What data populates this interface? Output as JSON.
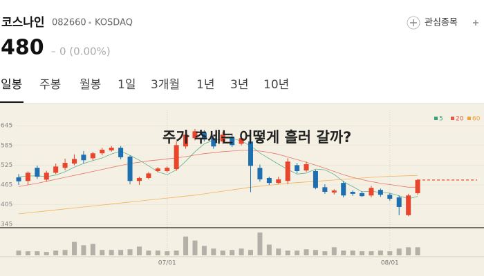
{
  "header": {
    "name": "코스나인",
    "code": "082660",
    "market": "KOSDAQ",
    "watchlist": "관심종목",
    "price": 480,
    "change_mark": "–",
    "change": "0 (0.00%)"
  },
  "tabs": [
    "일봉",
    "주봉",
    "월봉",
    "1일",
    "3개월",
    "1년",
    "3년",
    "10년"
  ],
  "chart_data": {
    "type": "candlestick",
    "title": "주가 추세는 어떻게 흘러 갈까?",
    "categories": [
      null,
      null,
      null,
      null,
      null,
      null,
      null,
      null,
      null,
      null,
      null,
      null,
      null,
      null,
      null,
      null,
      "07/01",
      null,
      null,
      null,
      null,
      null,
      null,
      null,
      null,
      null,
      null,
      null,
      null,
      null,
      null,
      null,
      null,
      null,
      null,
      null,
      null,
      null,
      null,
      null,
      "08/01",
      null,
      null,
      null
    ],
    "open": [
      488,
      477,
      517,
      481,
      502,
      517,
      530,
      557,
      546,
      561,
      570,
      578,
      551,
      477,
      486,
      507,
      507,
      513,
      582,
      607,
      624,
      607,
      597,
      611,
      590,
      597,
      517,
      486,
      471,
      477,
      525,
      509,
      507,
      458,
      442,
      471,
      444,
      440,
      433,
      450,
      435,
      427,
      373,
      440
    ],
    "high": [
      498,
      506,
      524,
      508,
      530,
      545,
      558,
      568,
      566,
      578,
      583,
      583,
      555,
      490,
      504,
      519,
      521,
      598,
      627,
      635,
      632,
      614,
      626,
      617,
      614,
      603,
      527,
      490,
      490,
      546,
      532,
      536,
      511,
      467,
      452,
      477,
      448,
      446,
      462,
      454,
      440,
      433,
      438,
      483
    ],
    "low": [
      465,
      465,
      483,
      475,
      498,
      510,
      525,
      530,
      540,
      555,
      566,
      543,
      467,
      465,
      482,
      503,
      503,
      508,
      575,
      600,
      597,
      575,
      590,
      580,
      585,
      443,
      475,
      465,
      468,
      467,
      500,
      505,
      452,
      438,
      436,
      427,
      432,
      428,
      427,
      429,
      417,
      373,
      370,
      435
    ],
    "close": [
      476,
      502,
      490,
      502,
      521,
      532,
      544,
      540,
      561,
      572,
      578,
      549,
      477,
      486,
      500,
      515,
      517,
      586,
      618,
      628,
      603,
      582,
      618,
      586,
      607,
      523,
      482,
      471,
      482,
      536,
      507,
      528,
      456,
      444,
      448,
      433,
      438,
      431,
      456,
      435,
      423,
      398,
      433,
      480
    ],
    "up_color": "#e8452c",
    "down_color": "#1e6fb0",
    "ylim": [
      335,
      681
    ],
    "yticks": [
      645,
      585,
      525,
      465,
      405,
      345
    ],
    "series": [
      {
        "name": "5",
        "color": "#3aa17e",
        "values": [
          490,
          492,
          493,
          490,
          495,
          505,
          519,
          530,
          539,
          547,
          559,
          568,
          555,
          540,
          523,
          505,
          496,
          511,
          537,
          566,
          590,
          601,
          605,
          607,
          598,
          584,
          562,
          545,
          528,
          512,
          498,
          501,
          513,
          511,
          497,
          475,
          460,
          444,
          446,
          442,
          440,
          432,
          423,
          430
        ]
      },
      {
        "name": "20",
        "color": "#e2584a",
        "values": [
          460,
          465,
          470,
          476,
          482,
          488,
          494,
          500,
          506,
          512,
          518,
          524,
          530,
          534,
          538,
          541,
          544,
          547,
          551,
          556,
          560,
          563,
          566,
          568,
          570,
          570,
          568,
          564,
          558,
          550,
          542,
          534,
          525,
          516,
          506,
          496,
          488,
          481,
          475,
          470,
          466,
          462,
          458,
          458
        ]
      },
      {
        "name": "60",
        "color": "#f2a23a",
        "values": [
          377,
          380,
          383,
          386,
          389,
          392,
          395,
          398,
          401,
          404,
          407,
          410,
          413,
          416,
          419,
          422,
          425,
          428,
          431,
          434,
          438,
          442,
          446,
          450,
          454,
          458,
          461,
          464,
          467,
          470,
          472,
          474,
          476,
          478,
          480,
          482,
          484,
          486,
          488,
          490,
          491,
          492,
          493,
          494
        ]
      }
    ],
    "volume": {
      "color": "#b3b0a8",
      "ylim": [
        0,
        36
      ],
      "values": [
        7,
        6,
        6,
        5,
        7,
        8,
        20,
        15,
        17,
        8,
        8,
        8,
        9,
        13,
        7,
        7,
        6,
        7,
        28,
        22,
        14,
        10,
        7,
        8,
        10,
        8,
        34,
        16,
        10,
        7,
        7,
        9,
        8,
        6,
        12,
        7,
        7,
        6,
        6,
        7,
        6,
        10,
        12,
        12
      ]
    }
  }
}
